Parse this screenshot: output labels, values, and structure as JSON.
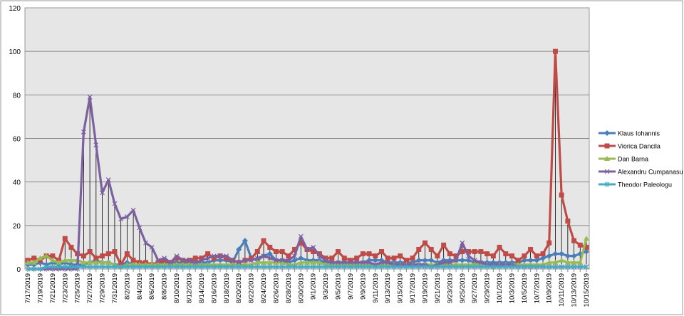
{
  "chart_data": {
    "type": "line",
    "title": "",
    "xlabel": "",
    "ylabel": "",
    "ylim": [
      0,
      120
    ],
    "yticks": [
      0,
      20,
      40,
      60,
      80,
      100,
      120
    ],
    "grid": true,
    "legend_position": "right",
    "categories": [
      "7/17/2019",
      "7/18/2019",
      "7/19/2019",
      "7/20/2019",
      "7/21/2019",
      "7/22/2019",
      "7/23/2019",
      "7/24/2019",
      "7/25/2019",
      "7/26/2019",
      "7/27/2019",
      "7/28/2019",
      "7/29/2019",
      "7/30/2019",
      "7/31/2019",
      "8/1/2019",
      "8/2/2019",
      "8/3/2019",
      "8/4/2019",
      "8/5/2019",
      "8/6/2019",
      "8/7/2019",
      "8/8/2019",
      "8/9/2019",
      "8/10/2019",
      "8/11/2019",
      "8/12/2019",
      "8/13/2019",
      "8/14/2019",
      "8/15/2019",
      "8/16/2019",
      "8/17/2019",
      "8/18/2019",
      "8/19/2019",
      "8/20/2019",
      "8/21/2019",
      "8/22/2019",
      "8/23/2019",
      "8/24/2019",
      "8/25/2019",
      "8/26/2019",
      "8/27/2019",
      "8/28/2019",
      "8/29/2019",
      "8/30/2019",
      "8/31/2019",
      "9/1/2019",
      "9/2/2019",
      "9/3/2019",
      "9/4/2019",
      "9/5/2019",
      "9/6/2019",
      "9/7/2019",
      "9/8/2019",
      "9/9/2019",
      "9/10/2019",
      "9/11/2019",
      "9/12/2019",
      "9/13/2019",
      "9/14/2019",
      "9/15/2019",
      "9/16/2019",
      "9/17/2019",
      "9/18/2019",
      "9/19/2019",
      "9/20/2019",
      "9/21/2019",
      "9/22/2019",
      "9/23/2019",
      "9/24/2019",
      "9/25/2019",
      "9/26/2019",
      "9/27/2019",
      "9/28/2019",
      "9/29/2019",
      "9/30/2019",
      "10/1/2019",
      "10/2/2019",
      "10/3/2019",
      "10/4/2019",
      "10/5/2019",
      "10/6/2019",
      "10/7/2019",
      "10/8/2019",
      "10/9/2019",
      "10/10/2019",
      "10/11/2019",
      "10/12/2019",
      "10/13/2019",
      "10/14/2019",
      "10/15/2019"
    ],
    "series": [
      {
        "name": "Klaus Iohannis",
        "color": "#4a7ebb",
        "marker": "diamond",
        "values": [
          2,
          2,
          3,
          2,
          3,
          2,
          3,
          2,
          2,
          2,
          3,
          4,
          3,
          3,
          2,
          2,
          3,
          2,
          2,
          2,
          2,
          2,
          3,
          3,
          3,
          3,
          3,
          3,
          3,
          3,
          4,
          4,
          4,
          3,
          9,
          13,
          5,
          4,
          6,
          7,
          4,
          4,
          3,
          4,
          5,
          4,
          4,
          4,
          3,
          3,
          3,
          3,
          3,
          3,
          3,
          4,
          4,
          4,
          3,
          3,
          3,
          3,
          3,
          4,
          4,
          4,
          3,
          4,
          4,
          4,
          4,
          4,
          3,
          3,
          3,
          3,
          3,
          3,
          3,
          3,
          4,
          4,
          4,
          5,
          6,
          7,
          7,
          6,
          6,
          7,
          8
        ]
      },
      {
        "name": "Viorica Dancila",
        "color": "#be4b48",
        "marker": "square",
        "values": [
          4,
          5,
          4,
          6,
          6,
          4,
          14,
          10,
          7,
          6,
          8,
          5,
          6,
          7,
          8,
          2,
          7,
          4,
          3,
          3,
          2,
          3,
          4,
          3,
          5,
          4,
          4,
          5,
          5,
          7,
          5,
          6,
          5,
          4,
          3,
          4,
          5,
          8,
          13,
          10,
          8,
          8,
          6,
          9,
          12,
          9,
          8,
          7,
          5,
          5,
          8,
          5,
          4,
          5,
          7,
          7,
          6,
          8,
          5,
          5,
          6,
          4,
          5,
          9,
          12,
          9,
          6,
          11,
          7,
          6,
          8,
          8,
          8,
          8,
          7,
          6,
          10,
          7,
          6,
          4,
          6,
          9,
          6,
          7,
          12,
          100,
          34,
          22,
          13,
          11,
          10
        ]
      },
      {
        "name": "Dan Barna",
        "color": "#98b954",
        "marker": "triangle",
        "values": [
          3,
          3,
          5,
          6,
          4,
          3,
          4,
          4,
          4,
          3,
          3,
          3,
          3,
          3,
          2,
          1,
          2,
          2,
          2,
          2,
          2,
          2,
          2,
          2,
          2,
          2,
          2,
          2,
          2,
          2,
          2,
          2,
          2,
          2,
          2,
          2,
          2,
          3,
          3,
          3,
          3,
          3,
          2,
          2,
          3,
          3,
          3,
          3,
          2,
          2,
          2,
          2,
          2,
          2,
          2,
          2,
          2,
          2,
          2,
          2,
          2,
          2,
          2,
          2,
          2,
          2,
          2,
          2,
          2,
          2,
          2,
          2,
          2,
          2,
          2,
          1,
          2,
          2,
          2,
          2,
          2,
          2,
          2,
          2,
          3,
          3,
          4,
          3,
          3,
          3,
          14
        ]
      },
      {
        "name": "Alexandru Cumpanasu",
        "color": "#7d60a0",
        "marker": "x",
        "values": [
          0,
          0,
          0,
          0,
          0,
          0,
          0,
          0,
          0,
          63,
          79,
          57,
          35,
          41,
          30,
          23,
          24,
          27,
          19,
          12,
          10,
          4,
          5,
          3,
          6,
          4,
          4,
          3,
          4,
          5,
          6,
          6,
          6,
          4,
          3,
          4,
          4,
          5,
          6,
          5,
          4,
          4,
          4,
          6,
          15,
          9,
          10,
          6,
          4,
          3,
          3,
          3,
          3,
          3,
          3,
          3,
          2,
          3,
          3,
          2,
          2,
          2,
          2,
          2,
          2,
          1,
          2,
          3,
          3,
          4,
          12,
          6,
          4,
          3,
          2,
          2,
          2,
          2,
          2,
          1,
          1,
          1,
          1,
          1,
          1,
          1,
          1,
          1,
          1,
          1,
          1
        ]
      },
      {
        "name": "Theodor Paleologu",
        "color": "#46aac5",
        "marker": "star",
        "values": [
          0,
          0,
          0,
          1,
          1,
          1,
          1,
          1,
          1,
          1,
          1,
          1,
          1,
          1,
          1,
          1,
          1,
          1,
          1,
          1,
          1,
          1,
          1,
          1,
          1,
          1,
          1,
          1,
          1,
          1,
          1,
          1,
          1,
          1,
          1,
          1,
          1,
          1,
          1,
          1,
          1,
          1,
          1,
          1,
          1,
          1,
          1,
          1,
          1,
          1,
          1,
          1,
          1,
          1,
          1,
          1,
          1,
          1,
          1,
          1,
          1,
          1,
          1,
          1,
          1,
          1,
          1,
          1,
          1,
          1,
          1,
          1,
          1,
          1,
          1,
          1,
          1,
          1,
          1,
          1,
          1,
          1,
          1,
          1,
          1,
          1,
          1,
          1,
          1,
          1,
          1
        ]
      }
    ]
  }
}
